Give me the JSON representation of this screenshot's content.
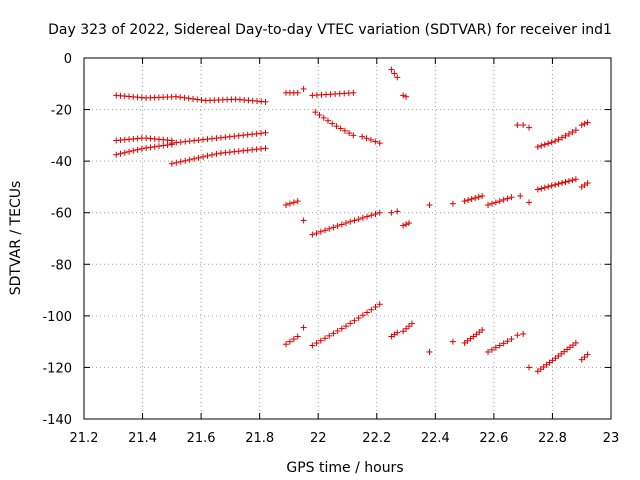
{
  "chart_data": {
    "type": "scatter",
    "title": "Day 323 of 2022, Sidereal Day-to-day VTEC variation (SDTVAR) for receiver ind1",
    "xlabel": "GPS time / hours",
    "ylabel": "SDTVAR / TECUs",
    "xlim": [
      21.2,
      23.0
    ],
    "ylim": [
      -140,
      0
    ],
    "xticks": [
      21.2,
      21.4,
      21.6,
      21.8,
      22.0,
      22.2,
      22.4,
      22.6,
      22.8,
      23.0
    ],
    "xtick_labels": [
      "21.2",
      "21.4",
      "21.6",
      "21.8",
      "22",
      "22.2",
      "22.4",
      "22.6",
      "22.8",
      "23"
    ],
    "yticks": [
      0,
      -20,
      -40,
      -60,
      -80,
      -100,
      -120,
      -140
    ],
    "ytick_labels": [
      "0",
      "-20",
      "-40",
      "-60",
      "-80",
      "-100",
      "-120",
      "-140"
    ],
    "grid": true,
    "marker": "+",
    "marker_color": "#e00000",
    "segments": [
      {
        "x0": 21.31,
        "x1": 21.82,
        "n": 36,
        "y": [
          -14.5,
          -15.5,
          -15.0,
          -16.5,
          -16.0,
          -17.0
        ]
      },
      {
        "x0": 21.31,
        "x1": 21.5,
        "n": 14,
        "y": [
          -32.0,
          -31.0,
          -32.0
        ]
      },
      {
        "x0": 21.5,
        "x1": 21.82,
        "n": 22,
        "y": [
          -33.0,
          -31.0,
          -29.0
        ]
      },
      {
        "x0": 21.31,
        "x1": 21.5,
        "n": 14,
        "y": [
          -37.5,
          -35.0,
          -33.5
        ]
      },
      {
        "x0": 21.5,
        "x1": 21.82,
        "n": 22,
        "y": [
          -41.0,
          -37.0,
          -35.0
        ]
      },
      {
        "x0": 21.89,
        "x1": 21.93,
        "n": 4,
        "y": [
          -13.5,
          -13.5
        ]
      },
      {
        "x0": 21.95,
        "x1": 21.95,
        "n": 1,
        "y": [
          -12.0
        ]
      },
      {
        "x0": 21.98,
        "x1": 22.12,
        "n": 10,
        "y": [
          -14.5,
          -13.5
        ]
      },
      {
        "x0": 21.99,
        "x1": 22.12,
        "n": 10,
        "y": [
          -21.0,
          -26.0,
          -30.0
        ]
      },
      {
        "x0": 22.15,
        "x1": 22.21,
        "n": 5,
        "y": [
          -30.5,
          -33.0
        ]
      },
      {
        "x0": 22.25,
        "x1": 22.27,
        "n": 3,
        "y": [
          -4.5,
          -7.5
        ]
      },
      {
        "x0": 22.29,
        "x1": 22.3,
        "n": 2,
        "y": [
          -14.5,
          -15.0
        ]
      },
      {
        "x0": 21.89,
        "x1": 21.93,
        "n": 4,
        "y": [
          -57.0,
          -55.5
        ]
      },
      {
        "x0": 21.95,
        "x1": 21.95,
        "n": 1,
        "y": [
          -63.0
        ]
      },
      {
        "x0": 21.98,
        "x1": 22.21,
        "n": 17,
        "y": [
          -68.5,
          -64.0,
          -60.0
        ]
      },
      {
        "x0": 22.25,
        "x1": 22.27,
        "n": 2,
        "y": [
          -60.0,
          -59.5
        ]
      },
      {
        "x0": 22.29,
        "x1": 22.31,
        "n": 3,
        "y": [
          -65.0,
          -64.0
        ]
      },
      {
        "x0": 22.38,
        "x1": 22.38,
        "n": 1,
        "y": [
          -57.0
        ]
      },
      {
        "x0": 22.46,
        "x1": 22.46,
        "n": 1,
        "y": [
          -56.5
        ]
      },
      {
        "x0": 22.5,
        "x1": 22.56,
        "n": 6,
        "y": [
          -55.5,
          -53.5
        ]
      },
      {
        "x0": 22.58,
        "x1": 22.66,
        "n": 7,
        "y": [
          -57.0,
          -54.0
        ]
      },
      {
        "x0": 22.69,
        "x1": 22.69,
        "n": 1,
        "y": [
          -53.5
        ]
      },
      {
        "x0": 22.72,
        "x1": 22.72,
        "n": 1,
        "y": [
          -56.0
        ]
      },
      {
        "x0": 22.75,
        "x1": 22.88,
        "n": 12,
        "y": [
          -51.0,
          -47.0
        ]
      },
      {
        "x0": 22.9,
        "x1": 22.92,
        "n": 3,
        "y": [
          -50.0,
          -48.5
        ]
      },
      {
        "x0": 22.68,
        "x1": 22.7,
        "n": 2,
        "y": [
          -26.0,
          -26.0
        ]
      },
      {
        "x0": 22.72,
        "x1": 22.72,
        "n": 1,
        "y": [
          -27.0
        ]
      },
      {
        "x0": 22.75,
        "x1": 22.88,
        "n": 12,
        "y": [
          -34.5,
          -32.0,
          -28.0
        ]
      },
      {
        "x0": 22.9,
        "x1": 22.92,
        "n": 3,
        "y": [
          -26.0,
          -25.0
        ]
      },
      {
        "x0": 21.89,
        "x1": 21.93,
        "n": 4,
        "y": [
          -111.0,
          -108.0
        ]
      },
      {
        "x0": 21.95,
        "x1": 21.95,
        "n": 1,
        "y": [
          -104.5
        ]
      },
      {
        "x0": 21.98,
        "x1": 22.21,
        "n": 17,
        "y": [
          -111.5,
          -104.0,
          -95.5
        ]
      },
      {
        "x0": 22.25,
        "x1": 22.27,
        "n": 3,
        "y": [
          -108.0,
          -106.5
        ]
      },
      {
        "x0": 22.29,
        "x1": 22.32,
        "n": 4,
        "y": [
          -106.0,
          -103.0
        ]
      },
      {
        "x0": 22.38,
        "x1": 22.38,
        "n": 1,
        "y": [
          -114.0
        ]
      },
      {
        "x0": 22.46,
        "x1": 22.46,
        "n": 1,
        "y": [
          -110.0
        ]
      },
      {
        "x0": 22.5,
        "x1": 22.56,
        "n": 7,
        "y": [
          -110.5,
          -105.5
        ]
      },
      {
        "x0": 22.58,
        "x1": 22.66,
        "n": 7,
        "y": [
          -114.0,
          -109.0
        ]
      },
      {
        "x0": 22.68,
        "x1": 22.7,
        "n": 2,
        "y": [
          -107.5,
          -107.0
        ]
      },
      {
        "x0": 22.72,
        "x1": 22.72,
        "n": 1,
        "y": [
          -120.0
        ]
      },
      {
        "x0": 22.75,
        "x1": 22.88,
        "n": 14,
        "y": [
          -121.5,
          -116.0,
          -110.5
        ]
      },
      {
        "x0": 22.9,
        "x1": 22.92,
        "n": 3,
        "y": [
          -117.0,
          -115.0
        ]
      }
    ]
  }
}
